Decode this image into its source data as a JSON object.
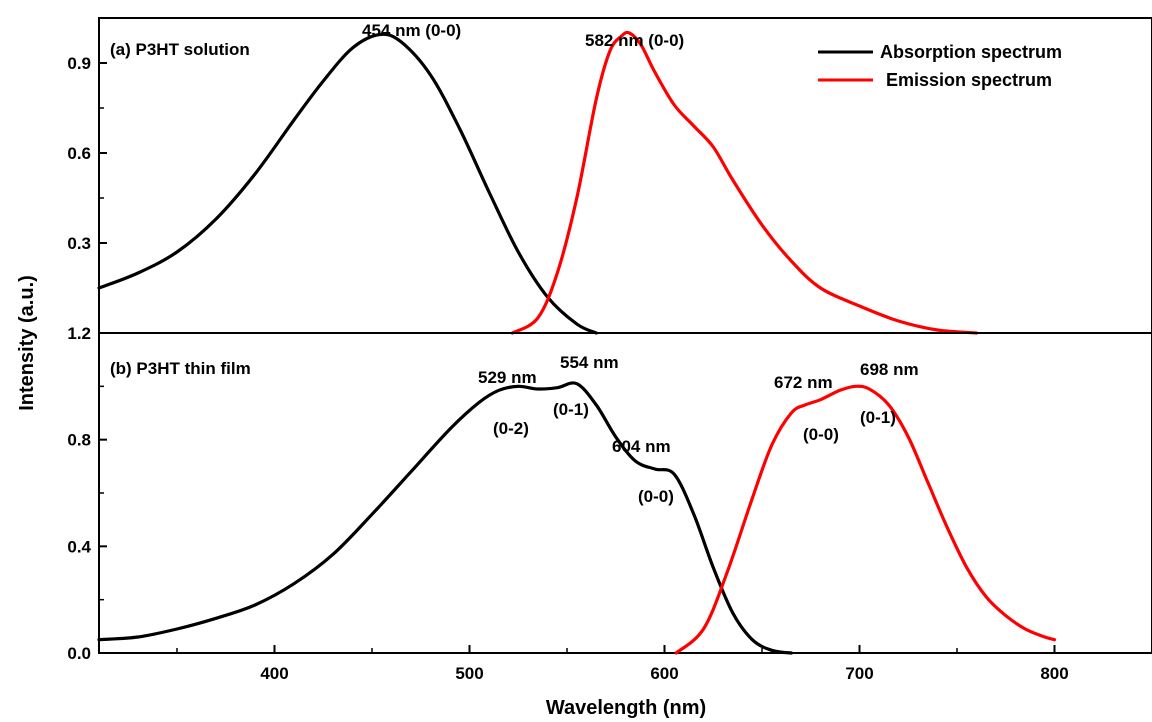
{
  "chart_data": {
    "type": "line",
    "xlabel": "Wavelength (nm)",
    "ylabel": "Intensity (a.u.)",
    "xlim": [
      310,
      850
    ],
    "x_ticks": [
      400,
      500,
      600,
      700,
      800
    ],
    "colors": {
      "absorption": "#000000",
      "emission": "#ff0000"
    },
    "legend": {
      "placement": "top-right",
      "entries": [
        {
          "name": "Absorption spectrum",
          "color": "#000000"
        },
        {
          "name": "Emission spectrum",
          "color": "#ff0000"
        }
      ]
    },
    "panels": [
      {
        "panel_label": "(a) P3HT solution",
        "ylim": [
          0,
          1.05
        ],
        "y_ticks": [
          0.3,
          0.6,
          0.9
        ],
        "y_tick_labels": [
          "0.3",
          "0.6",
          "0.9"
        ],
        "annotations": [
          {
            "text": "454 nm (0-0)",
            "x": 454,
            "y": 1.03
          },
          {
            "text": "582 nm (0-0)",
            "x": 582,
            "y": 1.0
          }
        ],
        "series": [
          {
            "name": "Absorption spectrum",
            "color": "#000000",
            "x": [
              310,
              330,
              350,
              370,
              390,
              410,
              425,
              440,
              454,
              465,
              480,
              495,
              510,
              525,
              540,
              555,
              565
            ],
            "y": [
              0.15,
              0.2,
              0.27,
              0.38,
              0.53,
              0.71,
              0.84,
              0.95,
              0.995,
              0.97,
              0.86,
              0.68,
              0.47,
              0.27,
              0.12,
              0.03,
              0.0
            ]
          },
          {
            "name": "Emission spectrum",
            "color": "#ff0000",
            "x": [
              522,
              535,
              545,
              555,
              565,
              572,
              578,
              582,
              588,
              595,
              605,
              615,
              625,
              635,
              650,
              665,
              680,
              700,
              720,
              740,
              760
            ],
            "y": [
              0.0,
              0.05,
              0.2,
              0.45,
              0.78,
              0.94,
              0.99,
              1.0,
              0.96,
              0.87,
              0.76,
              0.69,
              0.62,
              0.51,
              0.36,
              0.24,
              0.15,
              0.09,
              0.04,
              0.01,
              0.0
            ]
          }
        ]
      },
      {
        "panel_label": "(b) P3HT thin film",
        "ylim": [
          0,
          1.2
        ],
        "y_ticks": [
          0.0,
          0.4,
          0.8,
          1.2
        ],
        "y_tick_labels": [
          "0.0",
          "0.4",
          "0.8",
          "1.2"
        ],
        "annotations": [
          {
            "text": "529 nm",
            "x": 529
          },
          {
            "text": "(0-2)",
            "x": 529
          },
          {
            "text": "554 nm",
            "x": 554
          },
          {
            "text": "(0-1)",
            "x": 554
          },
          {
            "text": "604 nm",
            "x": 604
          },
          {
            "text": "(0-0)",
            "x": 604
          },
          {
            "text": "672 nm",
            "x": 672
          },
          {
            "text": "(0-0)",
            "x": 672
          },
          {
            "text": "698 nm",
            "x": 698
          },
          {
            "text": "(0-1)",
            "x": 698
          }
        ],
        "series": [
          {
            "name": "Absorption spectrum",
            "color": "#000000",
            "x": [
              310,
              330,
              350,
              370,
              390,
              410,
              430,
              450,
              470,
              490,
              505,
              515,
              525,
              535,
              545,
              555,
              565,
              575,
              585,
              595,
              605,
              615,
              625,
              635,
              645,
              655,
              665
            ],
            "y": [
              0.05,
              0.06,
              0.09,
              0.13,
              0.18,
              0.26,
              0.37,
              0.52,
              0.68,
              0.84,
              0.94,
              0.985,
              1.0,
              0.99,
              0.995,
              1.01,
              0.93,
              0.81,
              0.72,
              0.69,
              0.67,
              0.52,
              0.32,
              0.15,
              0.05,
              0.01,
              0.0
            ]
          },
          {
            "name": "Emission spectrum",
            "color": "#ff0000",
            "x": [
              606,
              620,
              632,
              645,
              655,
              665,
              672,
              680,
              690,
              698,
              705,
              715,
              725,
              735,
              745,
              755,
              765,
              775,
              785,
              795,
              800
            ],
            "y": [
              0.0,
              0.09,
              0.3,
              0.58,
              0.78,
              0.9,
              0.93,
              0.95,
              0.985,
              1.0,
              0.99,
              0.93,
              0.81,
              0.64,
              0.47,
              0.32,
              0.21,
              0.14,
              0.09,
              0.06,
              0.05
            ]
          }
        ]
      }
    ]
  }
}
